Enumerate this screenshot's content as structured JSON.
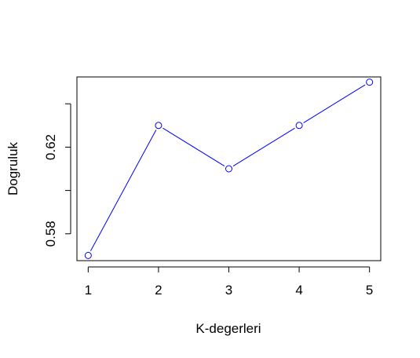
{
  "chart_data": {
    "type": "line",
    "title": "",
    "xlabel": "K-degerleri",
    "ylabel": "Dogruluk",
    "x": [
      1,
      2,
      3,
      4,
      5
    ],
    "series": [
      {
        "values": [
          0.57,
          0.63,
          0.61,
          0.63,
          0.65
        ]
      }
    ],
    "xticks": [
      "1",
      "2",
      "3",
      "4",
      "5"
    ],
    "yticks": [
      0.58,
      0.6,
      0.62,
      0.64
    ],
    "ytick_labels": [
      "0.58",
      "",
      "0.62",
      ""
    ],
    "xlim": [
      0.84,
      5.16
    ],
    "ylim": [
      0.5676,
      0.6524
    ],
    "line_color": "#0000ff",
    "marker": "open-circle",
    "grid": false,
    "legend": "none"
  }
}
